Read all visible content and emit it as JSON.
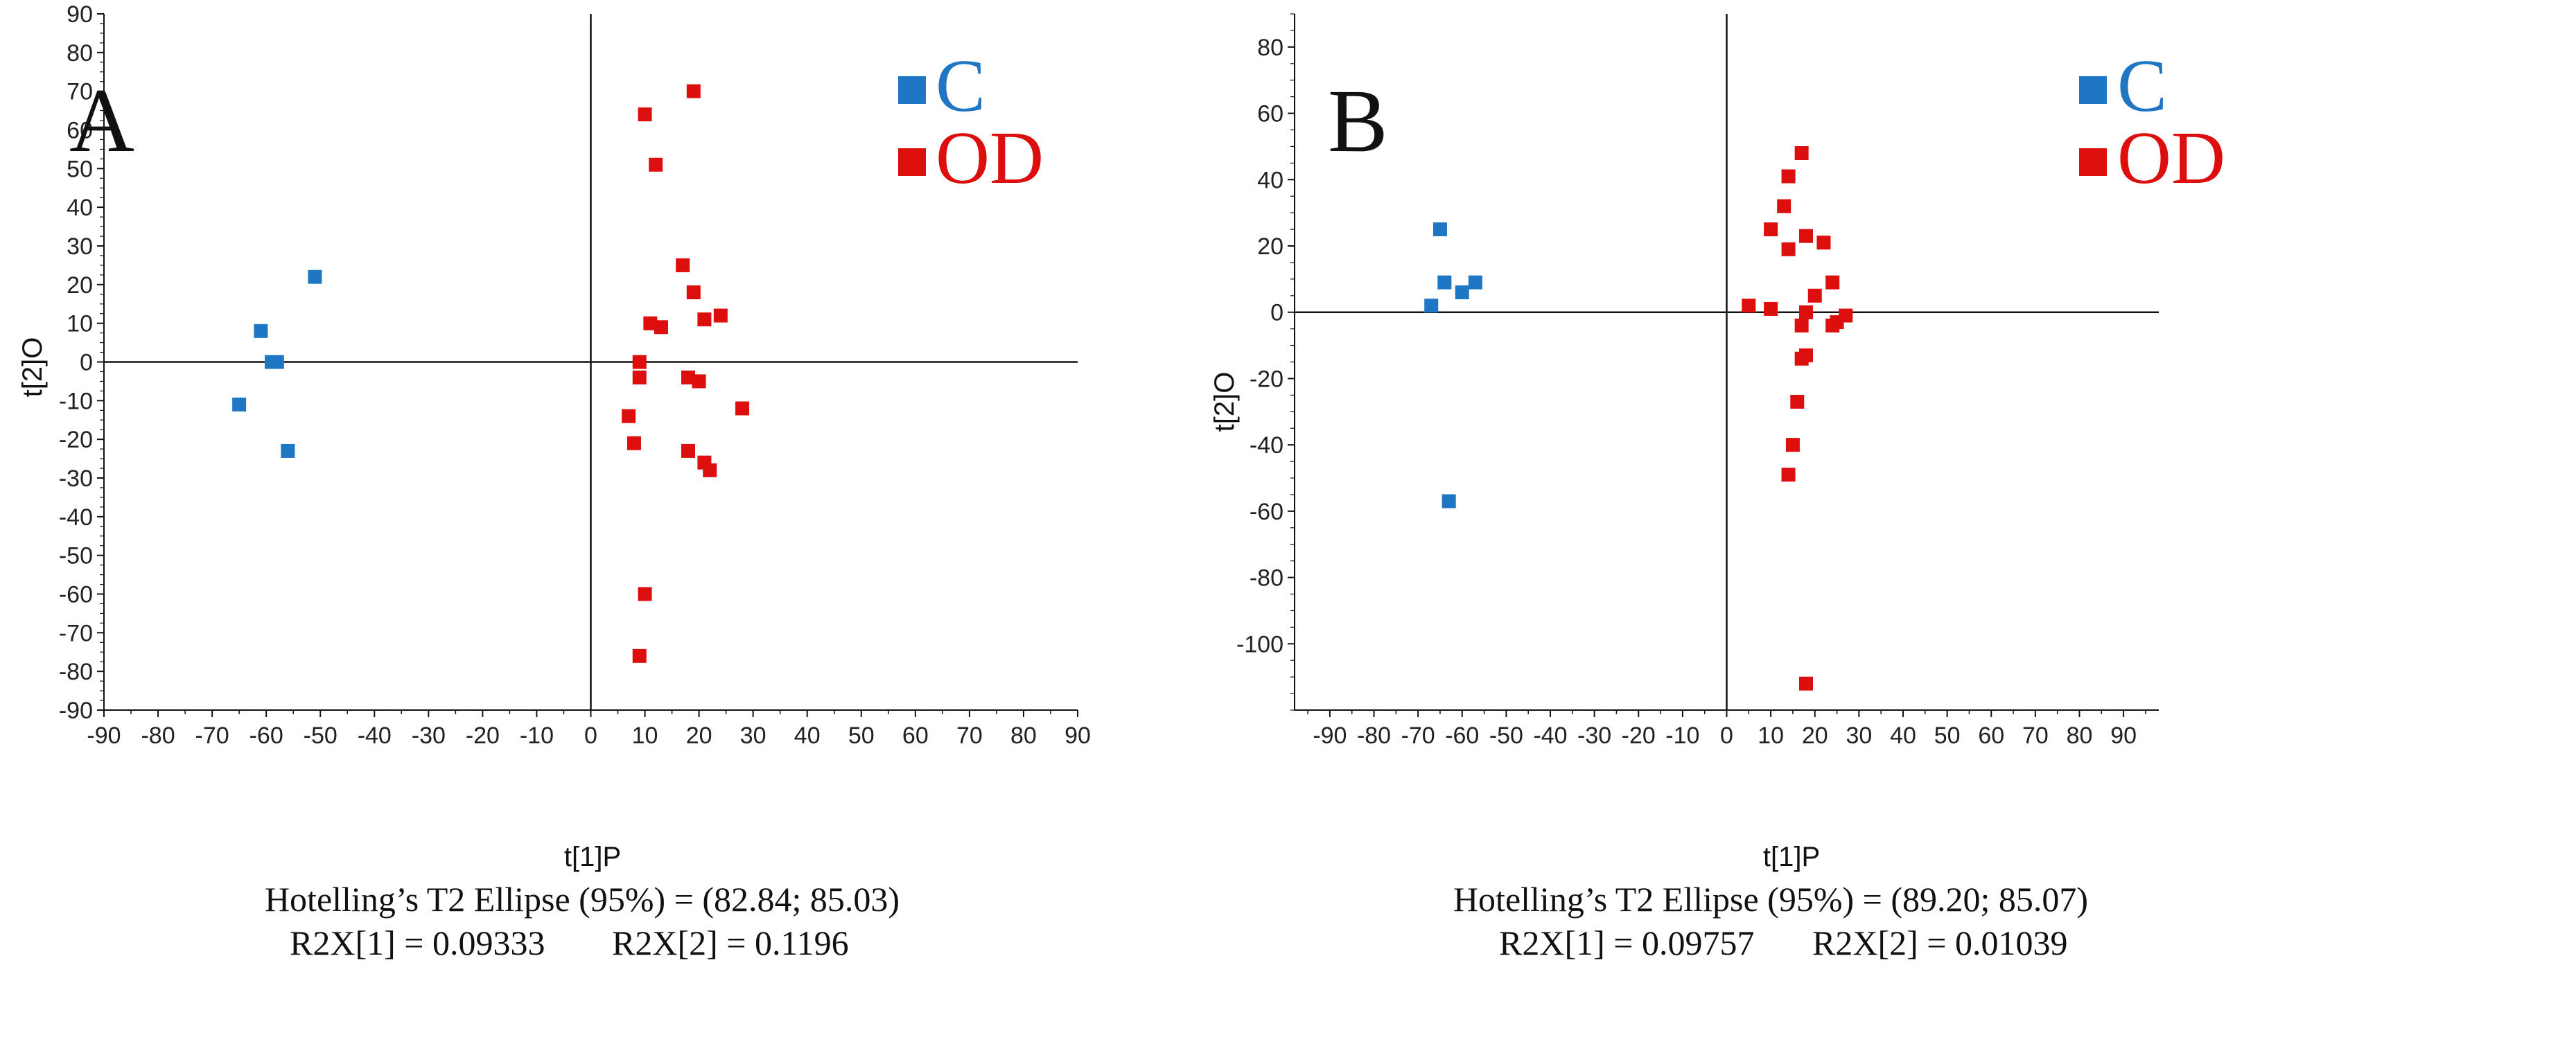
{
  "colors": {
    "C": "#1f77c4",
    "OD": "#dd0e0e",
    "axis": "#111111"
  },
  "chart_data": [
    {
      "type": "scatter",
      "panel": "A",
      "xlabel": "t[1]P",
      "ylabel": "t[2]O",
      "xlim": [
        -90,
        90
      ],
      "ylim": [
        -90,
        90
      ],
      "xticks": [
        -90,
        -80,
        -70,
        -60,
        -50,
        -40,
        -30,
        -20,
        -10,
        0,
        10,
        20,
        30,
        40,
        50,
        60,
        70,
        80,
        90
      ],
      "yticks": [
        -90,
        -80,
        -70,
        -60,
        -50,
        -40,
        -30,
        -20,
        -10,
        0,
        10,
        20,
        30,
        40,
        50,
        60,
        70,
        80,
        90
      ],
      "legend": {
        "position": "top-right",
        "entries": [
          "C",
          "OD"
        ]
      },
      "series": [
        {
          "name": "C",
          "points": [
            [
              -65,
              -11
            ],
            [
              -61,
              8
            ],
            [
              -59,
              0
            ],
            [
              -58,
              0
            ],
            [
              -56,
              -23
            ],
            [
              -51,
              22
            ]
          ]
        },
        {
          "name": "OD",
          "points": [
            [
              7,
              -14
            ],
            [
              8,
              -21
            ],
            [
              9,
              -4
            ],
            [
              9,
              0
            ],
            [
              9,
              -76
            ],
            [
              10,
              64
            ],
            [
              10,
              -60
            ],
            [
              11,
              10
            ],
            [
              12,
              51
            ],
            [
              13,
              9
            ],
            [
              17,
              25
            ],
            [
              18,
              -4
            ],
            [
              18,
              -23
            ],
            [
              19,
              70
            ],
            [
              19,
              18
            ],
            [
              20,
              -5
            ],
            [
              21,
              11
            ],
            [
              21,
              -26
            ],
            [
              22,
              -28
            ],
            [
              24,
              12
            ],
            [
              28,
              -12
            ]
          ]
        }
      ],
      "caption": {
        "line1": "Hotelling’s T2 Ellipse (95%) = (82.84; 85.03)",
        "r2x1": "R2X[1] = 0.09333",
        "r2x2": "R2X[2] = 0.1196"
      }
    },
    {
      "type": "scatter",
      "panel": "B",
      "xlabel": "t[1]P",
      "ylabel": "t[2]O",
      "xlim": [
        -98,
        98
      ],
      "ylim": [
        -120,
        90
      ],
      "xticks": [
        -90,
        -80,
        -70,
        -60,
        -50,
        -40,
        -30,
        -20,
        -10,
        0,
        10,
        20,
        30,
        40,
        50,
        60,
        70,
        80,
        90
      ],
      "yticks": [
        -100,
        -80,
        -60,
        -40,
        -20,
        0,
        20,
        40,
        60,
        80
      ],
      "legend": {
        "position": "top-right",
        "entries": [
          "C",
          "OD"
        ]
      },
      "series": [
        {
          "name": "C",
          "points": [
            [
              -67,
              2
            ],
            [
              -65,
              25
            ],
            [
              -64,
              9
            ],
            [
              -63,
              -57
            ],
            [
              -60,
              6
            ],
            [
              -57,
              9
            ]
          ]
        },
        {
          "name": "OD",
          "points": [
            [
              5,
              2
            ],
            [
              10,
              1
            ],
            [
              10,
              25
            ],
            [
              13,
              32
            ],
            [
              14,
              41
            ],
            [
              14,
              19
            ],
            [
              14,
              -49
            ],
            [
              15,
              -40
            ],
            [
              16,
              -27
            ],
            [
              17,
              -14
            ],
            [
              17,
              -4
            ],
            [
              17,
              48
            ],
            [
              18,
              -13
            ],
            [
              18,
              -112
            ],
            [
              18,
              23
            ],
            [
              18,
              0
            ],
            [
              20,
              5
            ],
            [
              22,
              21
            ],
            [
              24,
              9
            ],
            [
              24,
              -4
            ],
            [
              25,
              -3
            ],
            [
              27,
              -1
            ]
          ]
        }
      ],
      "caption": {
        "line1": "Hotelling’s T2 Ellipse (95%) = (89.20; 85.07)",
        "r2x1": "R2X[1] = 0.09757",
        "r2x2": "R2X[2] = 0.01039"
      }
    }
  ]
}
